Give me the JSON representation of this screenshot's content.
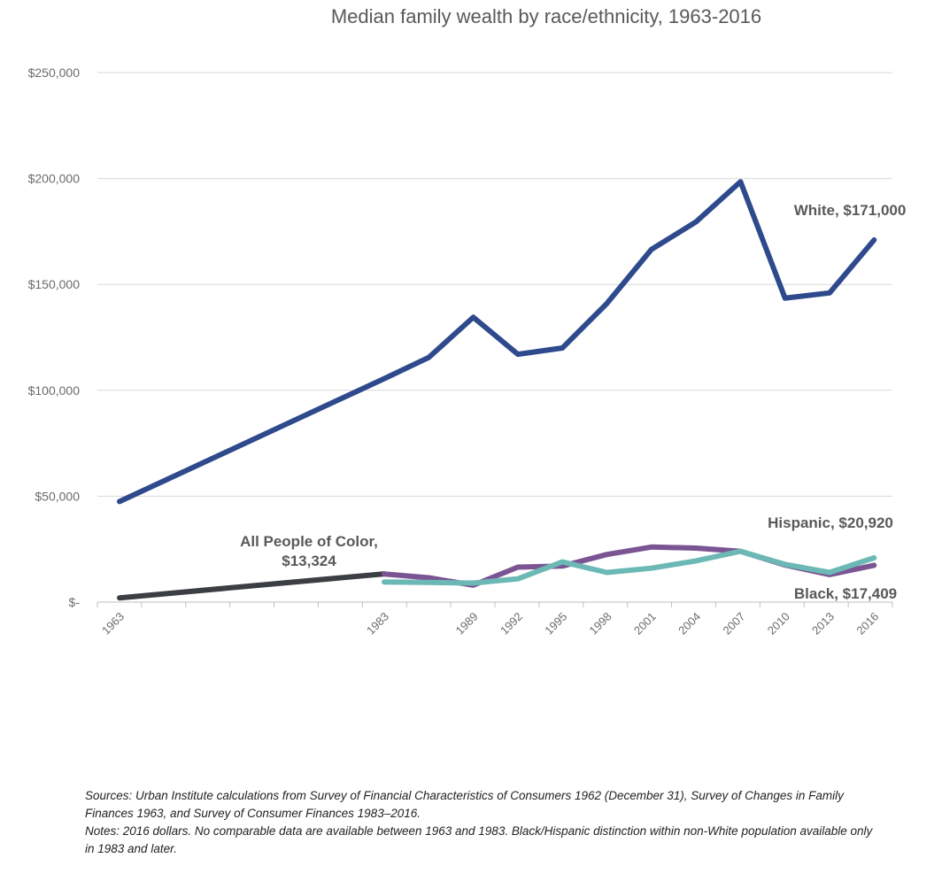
{
  "chart_data": {
    "type": "line",
    "title": "Median family wealth by race/ethnicity, 1963-2016",
    "xlabel": "",
    "ylabel": "",
    "ylim": [
      0,
      250000
    ],
    "yticks": [
      0,
      50000,
      100000,
      150000,
      200000,
      250000
    ],
    "ytick_labels": [
      "$-",
      "$50,000",
      "$100,000",
      "$150,000",
      "$200,000",
      "$250,000"
    ],
    "xticks": [
      1963,
      1983,
      1989,
      1992,
      1995,
      1998,
      2001,
      2004,
      2007,
      2010,
      2013,
      2016
    ],
    "grid": true,
    "series": [
      {
        "name": "White",
        "color": "#2e4a8c",
        "x": [
          1963,
          1983,
          1986,
          1989,
          1992,
          1995,
          1998,
          2001,
          2004,
          2007,
          2010,
          2013,
          2016
        ],
        "values": [
          47500,
          105500,
          115500,
          134500,
          117000,
          120000,
          141000,
          166500,
          179500,
          198500,
          143500,
          146000,
          171000
        ]
      },
      {
        "name": "All People of Color",
        "color": "#3b3f44",
        "x": [
          1963,
          1983
        ],
        "values": [
          2000,
          13324
        ]
      },
      {
        "name": "Black",
        "color": "#7b5593",
        "x": [
          1983,
          1986,
          1989,
          1992,
          1995,
          1998,
          2001,
          2004,
          2007,
          2010,
          2013,
          2016
        ],
        "values": [
          13300,
          11500,
          8000,
          16500,
          17000,
          22500,
          26000,
          25500,
          24000,
          17500,
          13000,
          17409
        ]
      },
      {
        "name": "Hispanic",
        "color": "#6bb8b4",
        "x": [
          1983,
          1986,
          1989,
          1992,
          1995,
          1998,
          2001,
          2004,
          2007,
          2010,
          2013,
          2016
        ],
        "values": [
          9500,
          9300,
          9000,
          11000,
          19000,
          14000,
          16000,
          19500,
          24000,
          17800,
          14000,
          20920
        ]
      }
    ],
    "annotations": {
      "white": "White, $171,000",
      "poc_line1": "All People of Color,",
      "poc_line2": "$13,324",
      "hispanic": "Hispanic, $20,920",
      "black": "Black, $17,409"
    }
  },
  "notes": {
    "sources": "Sources: Urban Institute calculations from Survey of Financial Characteristics of Consumers 1962 (December 31), Survey of Changes in Family Finances 1963, and Survey of Consumer Finances 1983–2016.",
    "notes": "Notes: 2016 dollars. No comparable data are available between 1963 and 1983. Black/Hispanic distinction within non-White population available only in 1983 and later."
  }
}
